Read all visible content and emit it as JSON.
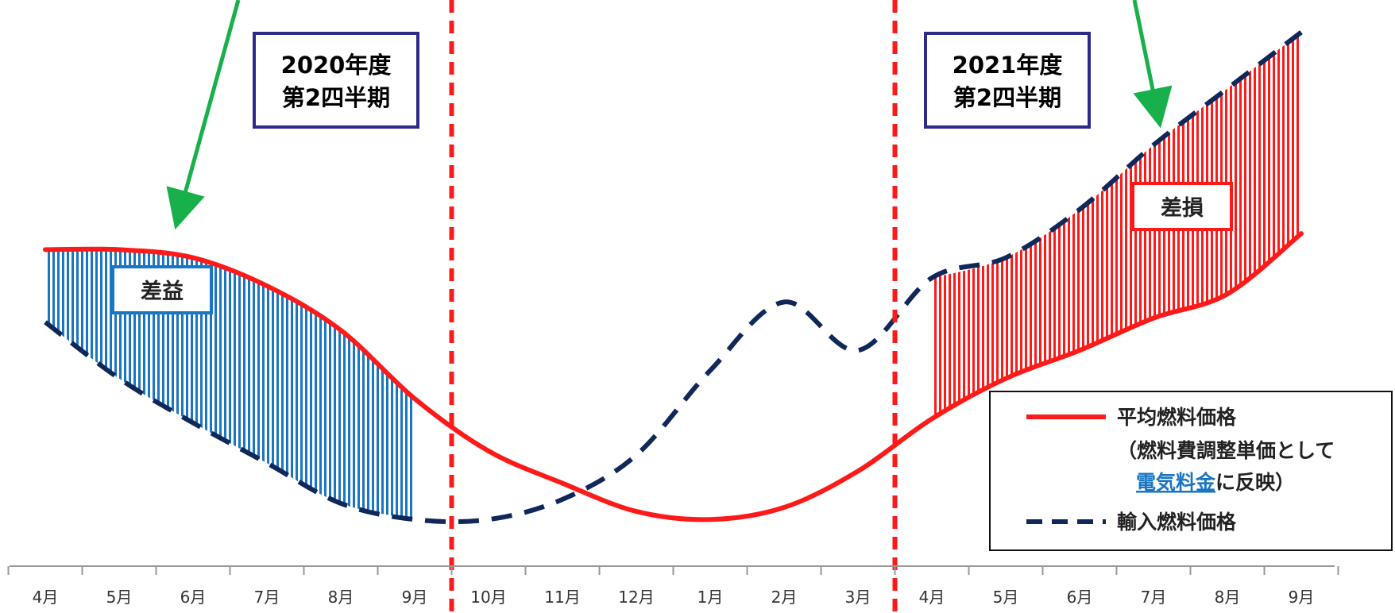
{
  "chart_data": {
    "type": "line",
    "x_labels": [
      "4月",
      "5月",
      "6月",
      "7月",
      "8月",
      "9月",
      "10月",
      "11月",
      "12月",
      "1月",
      "2月",
      "3月",
      "4月",
      "5月",
      "6月",
      "7月",
      "8月",
      "9月"
    ],
    "series": [
      {
        "name": "平均燃料価格",
        "style": "solid",
        "color": "#ff1a1a",
        "values": [
          7.8,
          7.8,
          7.6,
          6.9,
          5.8,
          4.1,
          2.8,
          2.0,
          1.3,
          1.1,
          1.4,
          2.3,
          3.6,
          4.6,
          5.3,
          6.1,
          6.7,
          8.2
        ]
      },
      {
        "name": "輸入燃料価格",
        "style": "dashed",
        "color": "#10275a",
        "values": [
          6.0,
          4.6,
          3.5,
          2.5,
          1.5,
          1.1,
          1.1,
          1.6,
          2.7,
          4.8,
          6.5,
          5.3,
          7.1,
          7.6,
          8.8,
          10.4,
          11.8,
          13.2
        ]
      }
    ],
    "ylim": [
      0,
      14
    ],
    "divider_indices": [
      5.5,
      11.5
    ],
    "grid": false,
    "legend_position": "bottom-right",
    "annotations": {
      "period1": {
        "line1": "2020年度",
        "line2": "第2四半期"
      },
      "period2": {
        "line1": "2021年度",
        "line2": "第2四半期"
      },
      "gain_label": "差益",
      "loss_label": "差損"
    },
    "legend": {
      "solid_label": "平均燃料価格",
      "solid_note_1": "（燃料費調整単価として",
      "solid_note_link": "電気料金",
      "solid_note_2": "に反映）",
      "dashed_label": "輸入燃料価格"
    },
    "colors": {
      "gain_fill": "#1a75c2",
      "loss_fill": "#ff1a1a",
      "box_border": "#2e2a8a",
      "arrow": "#18b04a",
      "divider": "#ff1a1a",
      "link": "#1a75c2"
    }
  }
}
